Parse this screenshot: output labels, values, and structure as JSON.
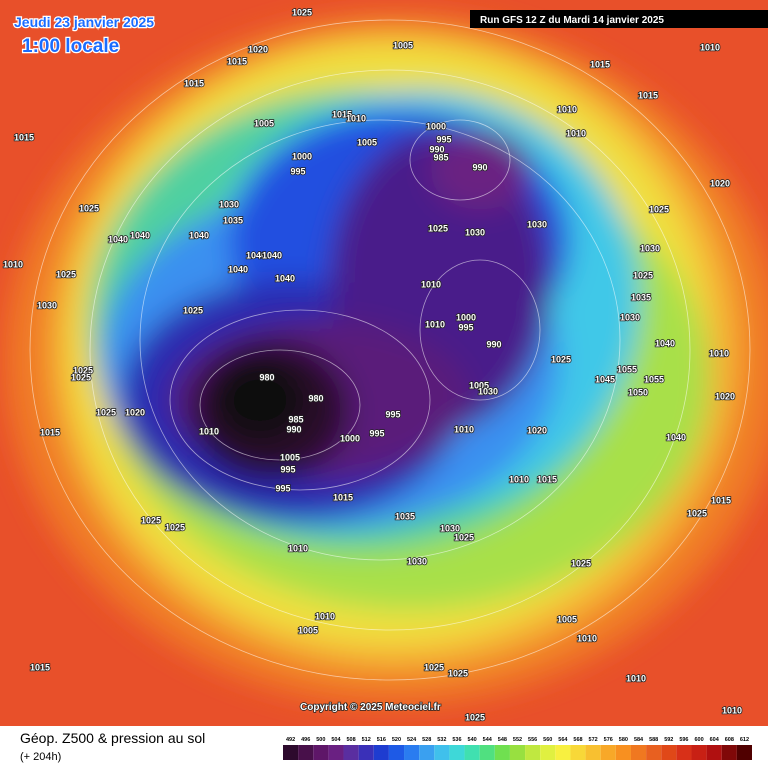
{
  "header": {
    "valid_date": "Jeudi 23 janvier 2025",
    "local_time": "1:00 locale",
    "run": "Run GFS 12 Z du Mardi 14 janvier 2025"
  },
  "map": {
    "copyright": "Copyright © 2025 Meteociel.fr",
    "isobar_labels": [
      1025,
      1005,
      1010,
      1020,
      1015,
      1015,
      1015,
      1015,
      1010,
      1015,
      1010,
      1005,
      1000,
      1010,
      995,
      1005,
      990,
      985,
      1015,
      1000,
      995,
      990,
      1020,
      1030,
      1025,
      1025,
      1035,
      1030,
      1025,
      1030,
      1040,
      1040,
      1040,
      1040,
      1040,
      1030,
      1010,
      1040,
      1025,
      1040,
      1025,
      1010,
      1035,
      1030,
      1025,
      1030,
      1000,
      1010,
      995,
      990,
      1040,
      1010,
      1025,
      1055,
      1025,
      1025,
      980,
      1045,
      1055,
      1005,
      1030,
      1050,
      1020,
      980,
      1025,
      1020,
      995,
      985,
      990,
      1010,
      1010,
      1020,
      1000,
      995,
      1015,
      1040,
      1005,
      995,
      1010,
      1015,
      995,
      1015,
      1015,
      1035,
      1025,
      1025,
      1025,
      1030,
      1025,
      1010,
      1030,
      1025,
      1010,
      1005,
      1005,
      1010,
      1015,
      1025,
      1025,
      1010,
      1010,
      1025
    ]
  },
  "footer": {
    "title": "Géop. Z500 & pression au sol",
    "lead": "(+ 204h)"
  },
  "legend": {
    "values": [
      492,
      496,
      500,
      504,
      508,
      512,
      516,
      520,
      524,
      528,
      532,
      536,
      540,
      544,
      548,
      552,
      556,
      560,
      564,
      568,
      572,
      576,
      580,
      584,
      588,
      592,
      596,
      600,
      604,
      608,
      612
    ],
    "colors": [
      "#2d0a2d",
      "#48104a",
      "#5e1668",
      "#6a2082",
      "#5a2ea0",
      "#3a30b8",
      "#1e3cd0",
      "#1e5ae6",
      "#2a7cf0",
      "#3aa0f0",
      "#40c0ec",
      "#3ed8d8",
      "#40e0b0",
      "#50e080",
      "#70e050",
      "#98e040",
      "#c0e840",
      "#e0f040",
      "#f8f040",
      "#f8d838",
      "#f8c030",
      "#f8a828",
      "#f89020",
      "#f07820",
      "#e86020",
      "#e04818",
      "#d83018",
      "#c82014",
      "#b01010",
      "#800808",
      "#500000"
    ]
  }
}
